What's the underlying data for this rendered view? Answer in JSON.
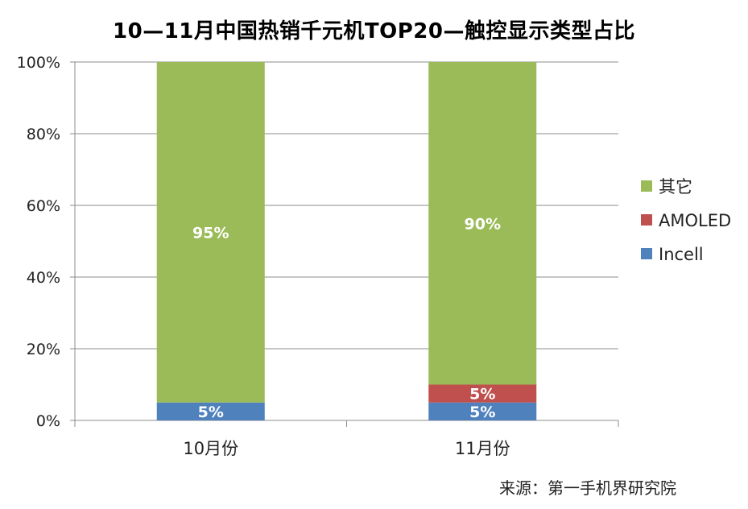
{
  "chart_data": {
    "type": "bar",
    "stacked": true,
    "title": "10—11月中国热销千元机TOP20—触控显示类型占比",
    "categories": [
      "10月份",
      "11月份"
    ],
    "series": [
      {
        "name": "Incell",
        "values": [
          5,
          5
        ],
        "color": "#4F81BD",
        "labels": [
          "5%",
          "5%"
        ]
      },
      {
        "name": "AMOLED",
        "values": [
          0,
          5
        ],
        "color": "#C0504D",
        "labels": [
          "",
          "5%"
        ]
      },
      {
        "name": "其它",
        "values": [
          95,
          90
        ],
        "color": "#9BBB59",
        "labels": [
          "95%",
          "90%"
        ]
      }
    ],
    "ylim": [
      0,
      100
    ],
    "yticks": [
      0,
      20,
      40,
      60,
      80,
      100
    ],
    "ytick_labels": [
      "0%",
      "20%",
      "40%",
      "60%",
      "80%",
      "100%"
    ],
    "grid": true,
    "legend_position": "right",
    "legend_order": [
      "其它",
      "AMOLED",
      "Incell"
    ],
    "source": "来源：第一手机界研究院"
  }
}
